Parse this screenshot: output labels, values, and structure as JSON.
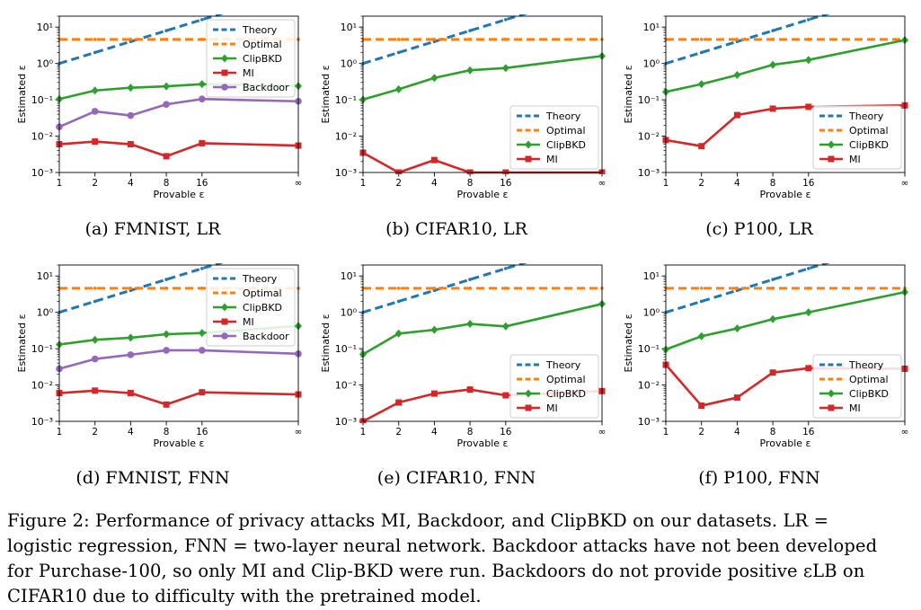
{
  "figure": {
    "caption_lines": [
      "Figure 2: Performance of privacy attacks MI, Backdoor, and ClipBKD on our datasets. LR =",
      "logistic regression, FNN = two-layer neural network. Backdoor attacks have not been developed",
      "for Purchase-100, so only MI and Clip-BKD were run. Backdoors do not provide positive εLB on",
      "CIFAR10 due to difficulty with the pretrained model."
    ]
  },
  "colors": {
    "Theory": "#1f77b4",
    "Optimal": "#ff7f0e",
    "ClipBKD": "#2ca02c",
    "MI": "#d62728",
    "Backdoor": "#9467bd"
  },
  "chart_data": [
    {
      "id": "a",
      "type": "line",
      "subcaption": "(a) FMNIST, LR",
      "xlabel": "Provable ε",
      "ylabel": "Estimated ε",
      "yscale": "log",
      "ylim": [
        0.001,
        20
      ],
      "x_ticks": [
        "1",
        "2",
        "4",
        "8",
        "16",
        "∞"
      ],
      "y_ticks": [
        "10⁻³",
        "10⁻²",
        "10⁻¹",
        "10⁰",
        "10¹"
      ],
      "legend_position": "top-right",
      "series": [
        {
          "name": "Theory",
          "style": "dashed",
          "x": [
            1,
            2,
            4,
            8,
            16
          ],
          "values": [
            1.0,
            2.0,
            4.0,
            8.0,
            16.0
          ]
        },
        {
          "name": "Optimal",
          "style": "dashed",
          "x": [
            1,
            2,
            4,
            8,
            16,
            "∞"
          ],
          "values": [
            4.6,
            4.6,
            4.6,
            4.6,
            4.6,
            4.6
          ]
        },
        {
          "name": "ClipBKD",
          "style": "solid-diamond",
          "x": [
            1,
            2,
            4,
            8,
            16,
            "∞"
          ],
          "values": [
            0.105,
            0.18,
            0.215,
            0.235,
            0.27,
            0.24
          ]
        },
        {
          "name": "MI",
          "style": "solid-square",
          "x": [
            1,
            2,
            4,
            8,
            16,
            "∞"
          ],
          "values": [
            0.006,
            0.0071,
            0.006,
            0.0028,
            0.0064,
            0.0055
          ]
        },
        {
          "name": "Backdoor",
          "style": "solid-circle",
          "x": [
            1,
            2,
            4,
            8,
            16,
            "∞"
          ],
          "values": [
            0.018,
            0.048,
            0.037,
            0.075,
            0.105,
            0.091
          ]
        }
      ]
    },
    {
      "id": "b",
      "type": "line",
      "subcaption": "(b) CIFAR10, LR",
      "xlabel": "Provable ε",
      "ylabel": "Estimated ε",
      "yscale": "log",
      "ylim": [
        0.001,
        20
      ],
      "x_ticks": [
        "1",
        "2",
        "4",
        "8",
        "16",
        "∞"
      ],
      "y_ticks": [
        "10⁻³",
        "10⁻²",
        "10⁻¹",
        "10⁰",
        "10¹"
      ],
      "legend_position": "lower-right",
      "series": [
        {
          "name": "Theory",
          "style": "dashed",
          "x": [
            1,
            2,
            4,
            8,
            16
          ],
          "values": [
            1.0,
            2.0,
            4.0,
            8.0,
            16.0
          ]
        },
        {
          "name": "Optimal",
          "style": "dashed",
          "x": [
            1,
            2,
            4,
            8,
            16,
            "∞"
          ],
          "values": [
            4.6,
            4.6,
            4.6,
            4.6,
            4.6,
            4.6
          ]
        },
        {
          "name": "ClipBKD",
          "style": "solid-diamond",
          "x": [
            1,
            2,
            4,
            8,
            16,
            "∞"
          ],
          "values": [
            0.102,
            0.195,
            0.4,
            0.65,
            0.75,
            1.6
          ]
        },
        {
          "name": "MI",
          "style": "solid-square",
          "x": [
            1,
            2,
            4,
            8,
            16,
            "∞"
          ],
          "values": [
            0.0035,
            0.001,
            0.0022,
            0.001,
            0.001,
            0.001
          ]
        }
      ]
    },
    {
      "id": "c",
      "type": "line",
      "subcaption": "(c) P100, LR",
      "xlabel": "Provable ε",
      "ylabel": "Estimated ε",
      "yscale": "log",
      "ylim": [
        0.001,
        20
      ],
      "x_ticks": [
        "1",
        "2",
        "4",
        "8",
        "16",
        "∞"
      ],
      "y_ticks": [
        "10⁻³",
        "10⁻²",
        "10⁻¹",
        "10⁰",
        "10¹"
      ],
      "legend_position": "lower-right",
      "series": [
        {
          "name": "Theory",
          "style": "dashed",
          "x": [
            1,
            2,
            4,
            8,
            16
          ],
          "values": [
            1.0,
            2.0,
            4.0,
            8.0,
            16.0
          ]
        },
        {
          "name": "Optimal",
          "style": "dashed",
          "x": [
            1,
            2,
            4,
            8,
            16,
            "∞"
          ],
          "values": [
            4.6,
            4.6,
            4.6,
            4.6,
            4.6,
            4.6
          ]
        },
        {
          "name": "ClipBKD",
          "style": "solid-diamond",
          "x": [
            1,
            2,
            4,
            8,
            16,
            "∞"
          ],
          "values": [
            0.165,
            0.27,
            0.48,
            0.92,
            1.25,
            4.4
          ]
        },
        {
          "name": "MI",
          "style": "solid-square",
          "x": [
            1,
            2,
            4,
            8,
            16,
            "∞"
          ],
          "values": [
            0.0078,
            0.0053,
            0.038,
            0.057,
            0.064,
            0.07
          ]
        }
      ]
    },
    {
      "id": "d",
      "type": "line",
      "subcaption": "(d) FMNIST, FNN",
      "xlabel": "Provable ε",
      "ylabel": "Estimated ε",
      "yscale": "log",
      "ylim": [
        0.001,
        20
      ],
      "x_ticks": [
        "1",
        "2",
        "4",
        "8",
        "16",
        "∞"
      ],
      "y_ticks": [
        "10⁻³",
        "10⁻²",
        "10⁻¹",
        "10⁰",
        "10¹"
      ],
      "legend_position": "top-right",
      "series": [
        {
          "name": "Theory",
          "style": "dashed",
          "x": [
            1,
            2,
            4,
            8,
            16
          ],
          "values": [
            1.0,
            2.0,
            4.0,
            8.0,
            16.0
          ]
        },
        {
          "name": "Optimal",
          "style": "dashed",
          "x": [
            1,
            2,
            4,
            8,
            16,
            "∞"
          ],
          "values": [
            4.6,
            4.6,
            4.6,
            4.6,
            4.6,
            4.6
          ]
        },
        {
          "name": "ClipBKD",
          "style": "solid-diamond",
          "x": [
            1,
            2,
            4,
            8,
            16,
            "∞"
          ],
          "values": [
            0.13,
            0.175,
            0.2,
            0.25,
            0.27,
            0.42
          ]
        },
        {
          "name": "MI",
          "style": "solid-square",
          "x": [
            1,
            2,
            4,
            8,
            16,
            "∞"
          ],
          "values": [
            0.006,
            0.007,
            0.006,
            0.0029,
            0.0063,
            0.0055
          ]
        },
        {
          "name": "Backdoor",
          "style": "solid-circle",
          "x": [
            1,
            2,
            4,
            8,
            16,
            "∞"
          ],
          "values": [
            0.028,
            0.052,
            0.068,
            0.09,
            0.09,
            0.072
          ]
        }
      ]
    },
    {
      "id": "e",
      "type": "line",
      "subcaption": "(e) CIFAR10, FNN",
      "xlabel": "Provable ε",
      "ylabel": "Estimated ε",
      "yscale": "log",
      "ylim": [
        0.001,
        20
      ],
      "x_ticks": [
        "1",
        "2",
        "4",
        "8",
        "16",
        "∞"
      ],
      "y_ticks": [
        "10⁻³",
        "10⁻²",
        "10⁻¹",
        "10⁰",
        "10¹"
      ],
      "legend_position": "lower-right",
      "series": [
        {
          "name": "Theory",
          "style": "dashed",
          "x": [
            1,
            2,
            4,
            8,
            16
          ],
          "values": [
            1.0,
            2.0,
            4.0,
            8.0,
            16.0
          ]
        },
        {
          "name": "Optimal",
          "style": "dashed",
          "x": [
            1,
            2,
            4,
            8,
            16,
            "∞"
          ],
          "values": [
            4.6,
            4.6,
            4.6,
            4.6,
            4.6,
            4.6
          ]
        },
        {
          "name": "ClipBKD",
          "style": "solid-diamond",
          "x": [
            1,
            2,
            4,
            8,
            16,
            "∞"
          ],
          "values": [
            0.07,
            0.26,
            0.33,
            0.48,
            0.41,
            1.7
          ]
        },
        {
          "name": "MI",
          "style": "solid-square",
          "x": [
            1,
            2,
            4,
            8,
            16,
            "∞"
          ],
          "values": [
            0.001,
            0.0033,
            0.0058,
            0.0075,
            0.0052,
            0.0068
          ]
        }
      ]
    },
    {
      "id": "f",
      "type": "line",
      "subcaption": "(f) P100, FNN",
      "xlabel": "Provable ε",
      "ylabel": "Estimated ε",
      "yscale": "log",
      "ylim": [
        0.001,
        20
      ],
      "x_ticks": [
        "1",
        "2",
        "4",
        "8",
        "16",
        "∞"
      ],
      "y_ticks": [
        "10⁻³",
        "10⁻²",
        "10⁻¹",
        "10⁰",
        "10¹"
      ],
      "legend_position": "lower-right",
      "series": [
        {
          "name": "Theory",
          "style": "dashed",
          "x": [
            1,
            2,
            4,
            8,
            16
          ],
          "values": [
            1.0,
            2.0,
            4.0,
            8.0,
            16.0
          ]
        },
        {
          "name": "Optimal",
          "style": "dashed",
          "x": [
            1,
            2,
            4,
            8,
            16,
            "∞"
          ],
          "values": [
            4.6,
            4.6,
            4.6,
            4.6,
            4.6,
            4.6
          ]
        },
        {
          "name": "ClipBKD",
          "style": "solid-diamond",
          "x": [
            1,
            2,
            4,
            8,
            16,
            "∞"
          ],
          "values": [
            0.095,
            0.22,
            0.36,
            0.65,
            1.0,
            3.6
          ]
        },
        {
          "name": "MI",
          "style": "solid-square",
          "x": [
            1,
            2,
            4,
            8,
            16,
            "∞"
          ],
          "values": [
            0.036,
            0.0027,
            0.0045,
            0.022,
            0.029,
            0.028
          ]
        }
      ]
    }
  ]
}
